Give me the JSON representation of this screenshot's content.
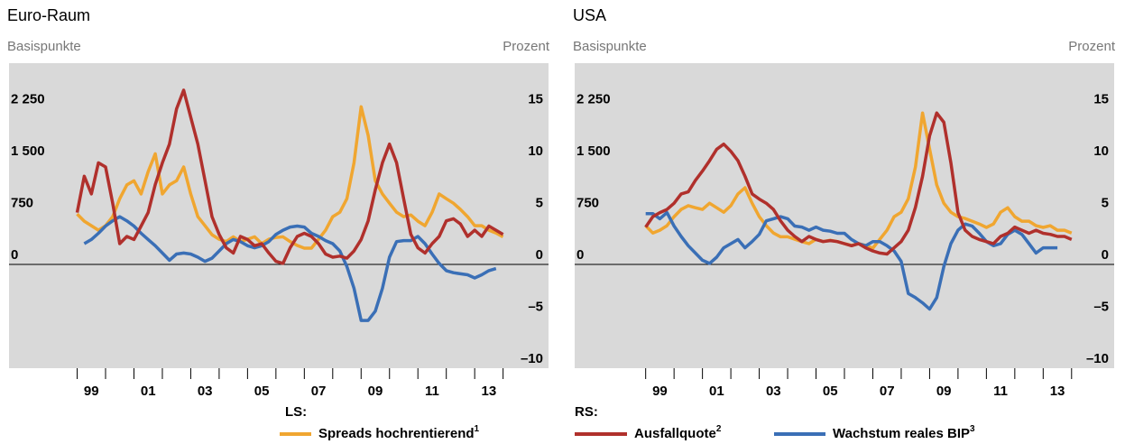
{
  "chart_data": [
    {
      "type": "line",
      "title": "Euro-Raum",
      "ylabel": "Basispunkte",
      "y2label": "Prozent",
      "y_group_label": "LS:",
      "y2_group_label": "RS:",
      "xlim": [
        1996.6,
        2015.6
      ],
      "ylim": [
        -1500,
        2910
      ],
      "y2lim": [
        -10,
        19.4
      ],
      "xticks": [
        {
          "value": 1999.5,
          "label": "99"
        },
        {
          "value": 2001.5,
          "label": "01"
        },
        {
          "value": 2003.5,
          "label": "03"
        },
        {
          "value": 2005.5,
          "label": "05"
        },
        {
          "value": 2007.5,
          "label": "07"
        },
        {
          "value": 2009.5,
          "label": "09"
        },
        {
          "value": 2011.5,
          "label": "11"
        },
        {
          "value": 2013.5,
          "label": "13"
        }
      ],
      "xminorticks": [
        1999,
        2000,
        2001,
        2002,
        2003,
        2004,
        2005,
        2006,
        2007,
        2008,
        2009,
        2010,
        2011,
        2012,
        2013,
        2014
      ],
      "yticks": [
        {
          "value": 2250,
          "label": "2 250"
        },
        {
          "value": 1500,
          "label": "1 500"
        },
        750,
        0
      ],
      "y2ticks": [
        15,
        10,
        5,
        0,
        {
          "value": -5,
          "label": "–5"
        },
        {
          "value": -10,
          "label": "–10"
        }
      ],
      "zero_line": true,
      "x": [
        1999,
        1999.25,
        1999.5,
        1999.75,
        2000,
        2000.25,
        2000.5,
        2000.75,
        2001,
        2001.25,
        2001.5,
        2001.75,
        2002,
        2002.25,
        2002.5,
        2002.75,
        2003,
        2003.25,
        2003.5,
        2003.75,
        2004,
        2004.25,
        2004.5,
        2004.75,
        2005,
        2005.25,
        2005.5,
        2005.75,
        2006,
        2006.25,
        2006.5,
        2006.75,
        2007,
        2007.25,
        2007.5,
        2007.75,
        2008,
        2008.25,
        2008.5,
        2008.75,
        2009,
        2009.25,
        2009.5,
        2009.75,
        2010,
        2010.25,
        2010.5,
        2010.75,
        2011,
        2011.25,
        2011.5,
        2011.75,
        2012,
        2012.25,
        2012.5,
        2012.75,
        2013,
        2013.25,
        2013.5,
        2013.75,
        2014
      ],
      "series": [
        {
          "name": "Spreads hochrentierend",
          "footnote": "1",
          "color": "#f0a630",
          "axis": "y",
          "values": [
            730,
            626,
            560,
            495,
            560,
            690,
            950,
            1150,
            1210,
            1020,
            1340,
            1600,
            1020,
            1150,
            1210,
            1410,
            1020,
            690,
            560,
            430,
            365,
            330,
            400,
            330,
            365,
            400,
            300,
            365,
            390,
            400,
            330,
            275,
            235,
            235,
            365,
            495,
            690,
            755,
            950,
            1470,
            2280,
            1865,
            1210,
            1020,
            885,
            755,
            690,
            715,
            625,
            560,
            755,
            1020,
            950,
            885,
            795,
            690,
            560,
            560,
            495,
            455,
            400
          ]
        },
        {
          "name": "Wachstum reales BIP",
          "footnote": "3",
          "color": "#3a6fb6",
          "axis": "y2",
          "values": [
            null,
            2.0,
            2.4,
            3.0,
            3.7,
            4.2,
            4.6,
            4.2,
            3.7,
            3.0,
            2.4,
            1.8,
            1.1,
            0.4,
            1.0,
            1.1,
            1.0,
            0.7,
            0.3,
            0.6,
            1.3,
            2.0,
            2.4,
            2.2,
            1.8,
            1.6,
            1.8,
            2.2,
            2.9,
            3.3,
            3.6,
            3.7,
            3.6,
            3.0,
            2.7,
            2.3,
            2.0,
            1.3,
            -0.2,
            -2.3,
            -5.4,
            -5.4,
            -4.5,
            -2.3,
            0.7,
            2.2,
            2.3,
            2.3,
            2.7,
            2.0,
            1.0,
            0.1,
            -0.6,
            -0.8,
            -0.9,
            -1.0,
            -1.3,
            -1.0,
            -0.6,
            -0.4,
            null
          ]
        },
        {
          "name": "Ausfallquote",
          "footnote": "2",
          "color": "#b0302c",
          "axis": "y2",
          "values": [
            5.0,
            8.5,
            6.8,
            9.8,
            9.4,
            5.9,
            2.0,
            2.7,
            2.4,
            3.7,
            5.0,
            7.7,
            9.8,
            11.6,
            15.0,
            16.8,
            14.2,
            11.6,
            8.1,
            4.6,
            2.9,
            1.6,
            1.1,
            2.7,
            2.4,
            1.8,
            2.0,
            1.1,
            0.3,
            0.1,
            1.6,
            2.7,
            3.0,
            2.7,
            2.0,
            1.0,
            0.7,
            0.8,
            0.6,
            1.3,
            2.4,
            4.2,
            7.2,
            9.8,
            11.6,
            9.8,
            6.3,
            2.9,
            1.6,
            1.1,
            2.0,
            2.7,
            4.2,
            4.4,
            3.9,
            2.7,
            3.3,
            2.7,
            3.7,
            3.3,
            2.9
          ]
        }
      ]
    },
    {
      "type": "line",
      "title": "USA",
      "ylabel": "Basispunkte",
      "y2label": "Prozent",
      "xlim": [
        1996.5,
        2015.5
      ],
      "ylim": [
        -1500,
        2910
      ],
      "y2lim": [
        -10,
        19.4
      ],
      "xticks": [
        {
          "value": 1999.5,
          "label": "99"
        },
        {
          "value": 2001.5,
          "label": "01"
        },
        {
          "value": 2003.5,
          "label": "03"
        },
        {
          "value": 2005.5,
          "label": "05"
        },
        {
          "value": 2007.5,
          "label": "07"
        },
        {
          "value": 2009.5,
          "label": "09"
        },
        {
          "value": 2011.5,
          "label": "11"
        },
        {
          "value": 2013.5,
          "label": "13"
        }
      ],
      "xminorticks": [
        1999,
        2000,
        2001,
        2002,
        2003,
        2004,
        2005,
        2006,
        2007,
        2008,
        2009,
        2010,
        2011,
        2012,
        2013,
        2014
      ],
      "yticks": [
        {
          "value": 2250,
          "label": "2 250"
        },
        {
          "value": 1500,
          "label": "1 500"
        },
        750,
        0
      ],
      "y2ticks": [
        15,
        10,
        5,
        0,
        {
          "value": -5,
          "label": "–5"
        },
        {
          "value": -10,
          "label": "–10"
        }
      ],
      "zero_line": true,
      "x": [
        1999,
        1999.25,
        1999.5,
        1999.75,
        2000,
        2000.25,
        2000.5,
        2000.75,
        2001,
        2001.25,
        2001.5,
        2001.75,
        2002,
        2002.25,
        2002.5,
        2002.75,
        2003,
        2003.25,
        2003.5,
        2003.75,
        2004,
        2004.25,
        2004.5,
        2004.75,
        2005,
        2005.25,
        2005.5,
        2005.75,
        2006,
        2006.25,
        2006.5,
        2006.75,
        2007,
        2007.25,
        2007.5,
        2007.75,
        2008,
        2008.25,
        2008.5,
        2008.75,
        2009,
        2009.25,
        2009.5,
        2009.75,
        2010,
        2010.25,
        2010.5,
        2010.75,
        2011,
        2011.25,
        2011.5,
        2011.75,
        2012,
        2012.25,
        2012.5,
        2012.75,
        2013,
        2013.25,
        2013.5,
        2013.75,
        2014
      ],
      "series": [
        {
          "name": "Spreads hochrentierend",
          "footnote": "1",
          "color": "#f0a630",
          "axis": "y",
          "values": [
            560,
            455,
            495,
            560,
            690,
            795,
            850,
            820,
            795,
            885,
            820,
            755,
            850,
            1020,
            1110,
            885,
            690,
            560,
            455,
            400,
            400,
            365,
            330,
            300,
            365,
            330,
            350,
            330,
            300,
            275,
            300,
            275,
            235,
            365,
            495,
            690,
            755,
            950,
            1410,
            2190,
            1670,
            1150,
            885,
            755,
            690,
            665,
            625,
            585,
            535,
            585,
            755,
            820,
            690,
            625,
            625,
            560,
            535,
            560,
            495,
            495,
            455
          ]
        },
        {
          "name": "Wachstum reales BIP",
          "footnote": "3",
          "color": "#3a6fb6",
          "axis": "y2",
          "values": [
            4.9,
            4.9,
            4.4,
            5.0,
            3.7,
            2.7,
            1.8,
            1.1,
            0.4,
            0.1,
            0.7,
            1.6,
            2.0,
            2.4,
            1.6,
            2.2,
            2.9,
            4.2,
            4.4,
            4.6,
            4.4,
            3.7,
            3.6,
            3.3,
            3.6,
            3.3,
            3.2,
            3.0,
            3.0,
            2.4,
            2.0,
            1.8,
            2.2,
            2.2,
            1.8,
            1.3,
            0.3,
            -2.8,
            -3.2,
            -3.7,
            -4.3,
            -3.2,
            -0.2,
            2.0,
            3.3,
            3.9,
            3.7,
            3.0,
            2.2,
            1.8,
            2.0,
            2.9,
            3.3,
            2.9,
            2.0,
            1.1,
            1.6,
            1.6,
            1.6,
            null,
            null
          ]
        },
        {
          "name": "Ausfallquote",
          "footnote": "2",
          "color": "#b0302c",
          "axis": "y2",
          "values": [
            3.6,
            4.6,
            5.0,
            5.3,
            5.9,
            6.8,
            7.0,
            8.1,
            9.0,
            10.0,
            11.1,
            11.6,
            10.9,
            10.0,
            8.5,
            6.8,
            6.3,
            5.9,
            5.3,
            4.2,
            3.3,
            2.7,
            2.2,
            2.7,
            2.4,
            2.2,
            2.3,
            2.2,
            2.0,
            1.8,
            2.0,
            1.6,
            1.3,
            1.1,
            1.0,
            1.6,
            2.2,
            3.3,
            5.5,
            8.5,
            12.4,
            14.6,
            13.7,
            9.8,
            5.0,
            3.3,
            2.7,
            2.4,
            2.2,
            2.0,
            2.7,
            3.0,
            3.6,
            3.3,
            3.0,
            3.3,
            3.0,
            2.9,
            2.7,
            2.7,
            2.4
          ]
        }
      ]
    }
  ]
}
